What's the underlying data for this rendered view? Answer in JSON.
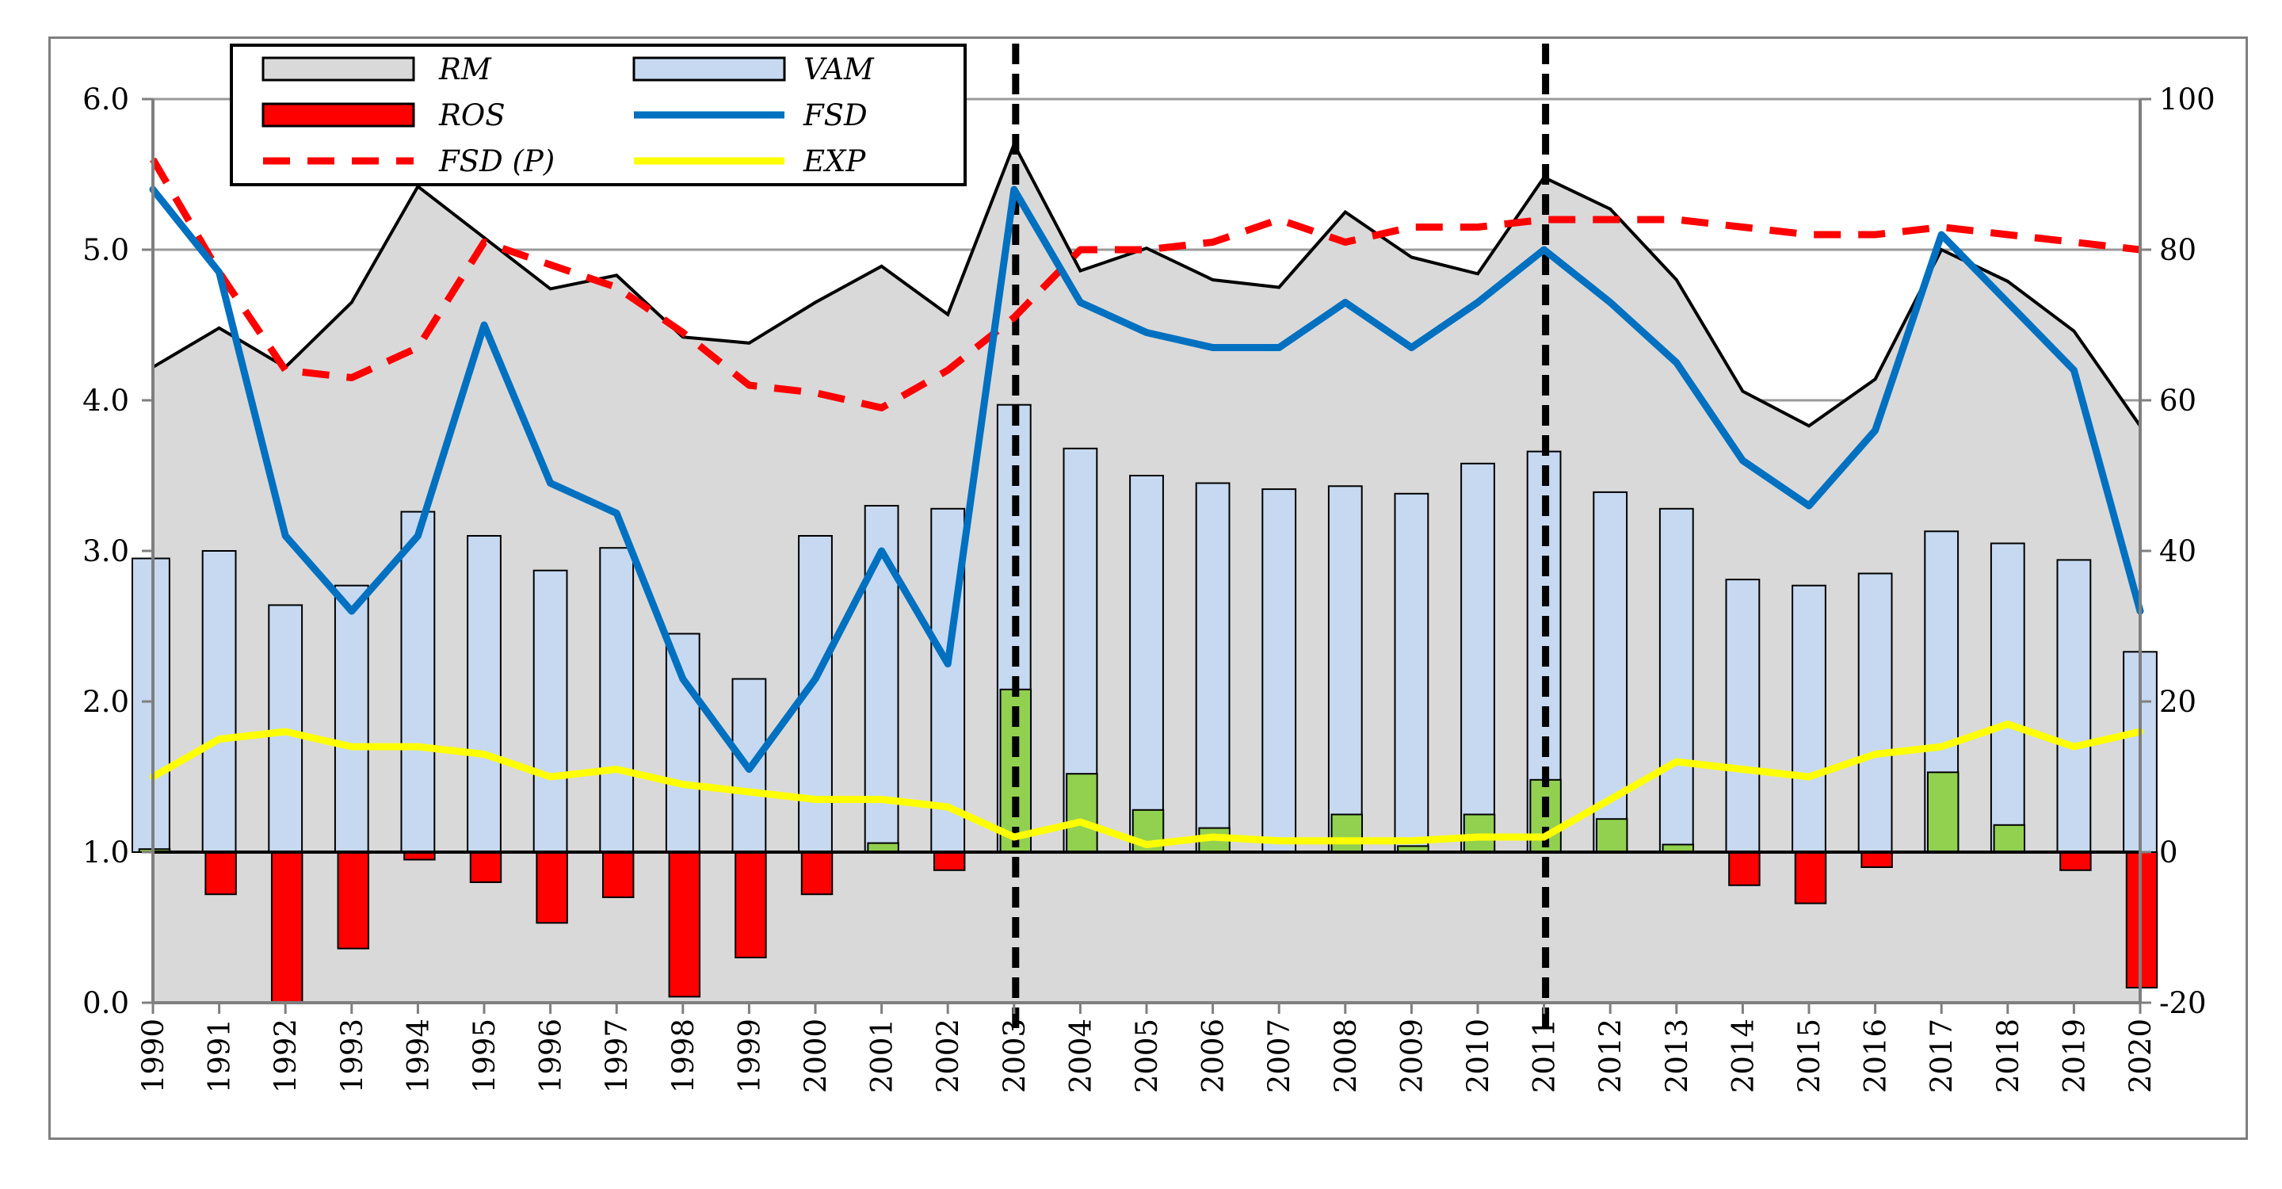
{
  "chart_data": {
    "type": "bar",
    "title": "",
    "xlabel": "",
    "ylabel": "",
    "y2label": "",
    "categories": [
      "1990",
      "1991",
      "1992",
      "1993",
      "1994",
      "1995",
      "1996",
      "1997",
      "1998",
      "1999",
      "2000",
      "2001",
      "2002",
      "2003",
      "2004",
      "2005",
      "2006",
      "2007",
      "2008",
      "2009",
      "2010",
      "2011",
      "2012",
      "2013",
      "2014",
      "2015",
      "2016",
      "2017",
      "2018",
      "2019",
      "2020"
    ],
    "ylim": [
      0,
      6
    ],
    "y_ticks": [
      "0.0",
      "1.0",
      "2.0",
      "3.0",
      "4.0",
      "5.0",
      "6.0"
    ],
    "y2lim": [
      -20,
      100
    ],
    "y2_ticks": [
      "-20",
      "0",
      "20",
      "40",
      "60",
      "80",
      "100"
    ],
    "bar_baseline": 1.0,
    "vertical_markers": [
      "2003",
      "2011"
    ],
    "series": [
      {
        "name": "RM",
        "type": "area",
        "axis": "left",
        "color": "#d9d9d9",
        "outline": "#000000",
        "values": [
          4.22,
          4.48,
          4.22,
          4.65,
          5.42,
          5.08,
          4.74,
          4.83,
          4.42,
          4.38,
          4.65,
          4.89,
          4.57,
          5.7,
          4.86,
          5.01,
          4.8,
          4.75,
          5.25,
          4.95,
          4.84,
          5.48,
          5.27,
          4.8,
          4.06,
          3.83,
          4.14,
          5.0,
          4.79,
          4.46,
          3.83
        ]
      },
      {
        "name": "VAM",
        "type": "bar",
        "axis": "left",
        "color": "#c6d9f1",
        "outline": "#000000",
        "values": [
          2.95,
          3.0,
          2.64,
          2.77,
          3.26,
          3.1,
          2.87,
          3.02,
          2.45,
          2.15,
          3.1,
          3.3,
          3.28,
          3.97,
          3.68,
          3.5,
          3.45,
          3.41,
          3.43,
          3.38,
          3.58,
          3.66,
          3.39,
          3.28,
          2.81,
          2.77,
          2.85,
          3.13,
          3.05,
          2.94,
          2.33
        ]
      },
      {
        "name": "ROS",
        "type": "bar",
        "axis": "left",
        "color_negative": "#ff0000",
        "color_positive": "#92d050",
        "outline": "#000000",
        "values": [
          1.02,
          0.72,
          0.0,
          0.36,
          0.95,
          0.8,
          0.53,
          0.7,
          0.04,
          0.3,
          0.72,
          1.06,
          0.88,
          2.08,
          1.52,
          1.28,
          1.16,
          1.0,
          1.25,
          1.04,
          1.25,
          1.48,
          1.22,
          1.05,
          0.78,
          0.66,
          0.9,
          1.53,
          1.18,
          0.88,
          0.1
        ]
      },
      {
        "name": "FSD",
        "type": "line",
        "axis": "right",
        "color": "#0070c0",
        "values": [
          88,
          77,
          42,
          32,
          42,
          70,
          49,
          45,
          23,
          11,
          23,
          40,
          25,
          88,
          73,
          69,
          67,
          67,
          73,
          67,
          73,
          80,
          73,
          65,
          52,
          46,
          56,
          82,
          73,
          64,
          32
        ]
      },
      {
        "name": "FSD (P)",
        "type": "line",
        "axis": "right",
        "style": "dashed",
        "color": "#ff0000",
        "values": [
          92,
          77,
          64,
          63,
          67,
          81,
          78,
          75,
          69,
          62,
          61,
          59,
          64,
          71,
          80,
          80,
          81,
          84,
          81,
          83,
          83,
          84,
          84,
          84,
          83,
          82,
          82,
          83,
          82,
          81,
          80
        ]
      },
      {
        "name": "EXP",
        "type": "line",
        "axis": "right",
        "color": "#ffff00",
        "values": [
          10,
          15,
          16,
          14,
          14,
          13,
          10,
          11,
          9,
          8,
          7,
          7,
          6,
          2,
          4,
          1,
          2,
          1.5,
          1.5,
          1.5,
          2,
          2,
          7,
          12,
          11,
          10,
          13,
          14,
          17,
          14,
          16
        ]
      }
    ],
    "legend": {
      "position": "top-left",
      "entries": [
        {
          "label": "RM",
          "swatch": "box",
          "color": "#d9d9d9"
        },
        {
          "label": "VAM",
          "swatch": "box",
          "color": "#c6d9f1"
        },
        {
          "label": "ROS",
          "swatch": "box",
          "color": "#ff0000"
        },
        {
          "label": "FSD",
          "swatch": "line",
          "color": "#0070c0"
        },
        {
          "label": "FSD (P)",
          "swatch": "dashed-line",
          "color": "#ff0000"
        },
        {
          "label": "EXP",
          "swatch": "line",
          "color": "#ffff00"
        }
      ]
    },
    "gridlines": true
  }
}
